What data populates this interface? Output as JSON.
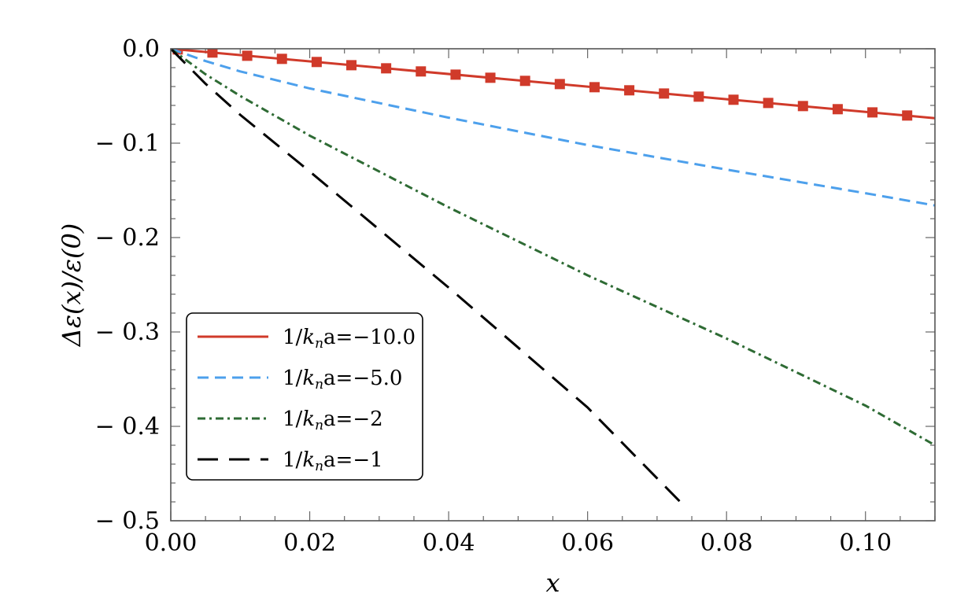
{
  "chart_data": {
    "type": "line",
    "xlabel": "x",
    "ylabel": "Δε(x)/ε(0)",
    "xlim": [
      0,
      0.11
    ],
    "ylim": [
      -0.5,
      0
    ],
    "xticks": [
      0.0,
      0.02,
      0.04,
      0.06,
      0.08,
      0.1
    ],
    "xtick_labels": [
      "0.00",
      "0.02",
      "0.04",
      "0.06",
      "0.08",
      "0.10"
    ],
    "yticks": [
      0.0,
      -0.1,
      -0.2,
      -0.3,
      -0.4,
      -0.5
    ],
    "ytick_labels": [
      "0.0",
      "− 0.1",
      "− 0.2",
      "− 0.3",
      "− 0.4",
      "− 0.5"
    ],
    "legend_position": "lower-left",
    "series": [
      {
        "name": "1/k_n a=−10.0",
        "legend_prefix": "1/",
        "legend_k": "k",
        "legend_sub": "n",
        "legend_suffix": "a=−10.0",
        "color": "#d03a2a",
        "style": "solid",
        "x": [
          0,
          0.11
        ],
        "y": [
          0,
          -0.0735
        ],
        "markers": {
          "x": [
            0.001,
            0.006,
            0.011,
            0.016,
            0.021,
            0.026,
            0.031,
            0.036,
            0.041,
            0.046,
            0.051,
            0.056,
            0.061,
            0.066,
            0.071,
            0.076,
            0.081,
            0.086,
            0.091,
            0.096,
            0.101,
            0.106
          ],
          "y": [
            -0.0007,
            -0.004,
            -0.0074,
            -0.0107,
            -0.014,
            -0.0174,
            -0.0207,
            -0.024,
            -0.0274,
            -0.0307,
            -0.034,
            -0.0374,
            -0.0407,
            -0.044,
            -0.0474,
            -0.0507,
            -0.054,
            -0.0574,
            -0.0607,
            -0.064,
            -0.0674,
            -0.0707
          ]
        }
      },
      {
        "name": "1/k_n a=−5.0",
        "legend_prefix": "1/",
        "legend_k": "k",
        "legend_sub": "n",
        "legend_suffix": "a=−5.0",
        "color": "#4da0ec",
        "style": "dashed",
        "x": [
          0,
          0.005,
          0.01,
          0.02,
          0.04,
          0.06,
          0.08,
          0.1,
          0.11
        ],
        "y": [
          0,
          -0.013,
          -0.024,
          -0.042,
          -0.073,
          -0.102,
          -0.128,
          -0.153,
          -0.166
        ]
      },
      {
        "name": "1/k_n a=−2",
        "legend_prefix": "1/",
        "legend_k": "k",
        "legend_sub": "n",
        "legend_suffix": "a=−2",
        "color": "#2e6b34",
        "style": "dashdot",
        "x": [
          0,
          0.005,
          0.01,
          0.02,
          0.04,
          0.06,
          0.08,
          0.1,
          0.11
        ],
        "y": [
          0,
          -0.027,
          -0.05,
          -0.092,
          -0.168,
          -0.24,
          -0.307,
          -0.378,
          -0.42
        ]
      },
      {
        "name": "1/k_n a=−1",
        "legend_prefix": "1/",
        "legend_k": "k",
        "legend_sub": "n",
        "legend_suffix": "a=−1",
        "color": "#000000",
        "style": "longdash",
        "x": [
          0,
          0.005,
          0.01,
          0.02,
          0.04,
          0.06,
          0.074
        ],
        "y": [
          0,
          -0.037,
          -0.07,
          -0.13,
          -0.253,
          -0.38,
          -0.485
        ]
      }
    ]
  }
}
